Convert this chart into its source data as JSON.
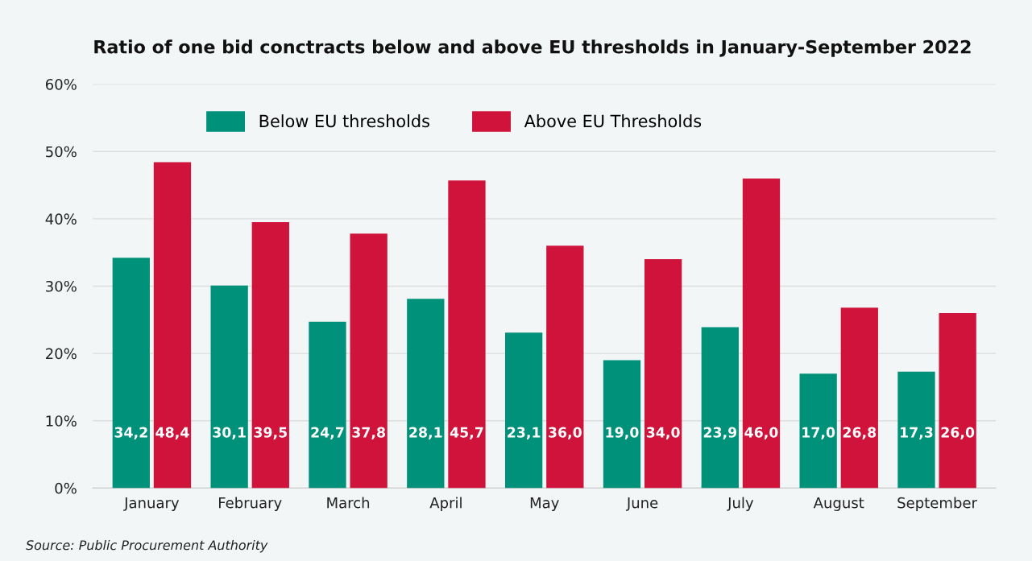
{
  "chart_data": {
    "type": "bar",
    "title": "Ratio of one bid conctracts below and above EU thresholds in January-September 2022",
    "categories": [
      "January",
      "February",
      "March",
      "April",
      "May",
      "June",
      "July",
      "August",
      "September"
    ],
    "series": [
      {
        "name": "Below EU thresholds",
        "color": "#00917a",
        "values": [
          34.2,
          30.1,
          24.7,
          28.1,
          23.1,
          19.0,
          23.9,
          17.0,
          17.3
        ],
        "value_labels": [
          "34,2",
          "30,1",
          "24,7",
          "28,1",
          "23,1",
          "19,0",
          "23,9",
          "17,0",
          "17,3"
        ]
      },
      {
        "name": "Above EU Thresholds",
        "color": "#cf133b",
        "values": [
          48.4,
          39.5,
          37.8,
          45.7,
          36.0,
          34.0,
          46.0,
          26.8,
          26.0
        ],
        "value_labels": [
          "48,4",
          "39,5",
          "37,8",
          "45,7",
          "36,0",
          "34,0",
          "46,0",
          "26,8",
          "26,0"
        ]
      }
    ],
    "ylim": [
      0,
      60
    ],
    "yticks": [
      {
        "value": 0,
        "label": "0%"
      },
      {
        "value": 10,
        "label": "10%"
      },
      {
        "value": 20,
        "label": "20%"
      },
      {
        "value": 30,
        "label": "30%"
      },
      {
        "value": 40,
        "label": "40%"
      },
      {
        "value": 50,
        "label": "50%"
      },
      {
        "value": 60,
        "label": "60%"
      }
    ],
    "grid": "y",
    "legend": "top",
    "annotations": [
      "Source: Public Procurement Authority"
    ]
  }
}
